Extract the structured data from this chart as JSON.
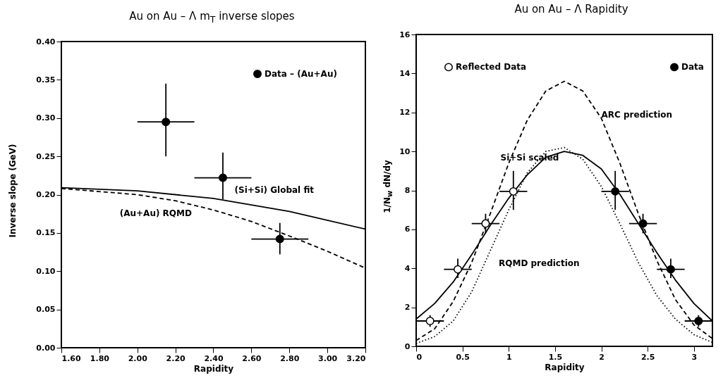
{
  "chart_data": [
    {
      "type": "scatter",
      "title": "Au on Au – Λ m$_{T}$ inverse slopes",
      "xlabel": "Rapidity",
      "ylabel": "Inverse slope (GeV)",
      "xlim": [
        1.6,
        3.2
      ],
      "ylim": [
        0,
        0.4
      ],
      "xticks": [
        {
          "value": 1.6,
          "label": "1.60"
        },
        {
          "value": 1.8,
          "label": "1.80"
        },
        {
          "value": 2.0,
          "label": "2.00"
        },
        {
          "value": 2.2,
          "label": "2.20"
        },
        {
          "value": 2.4,
          "label": "2.40"
        },
        {
          "value": 2.6,
          "label": "2.60"
        },
        {
          "value": 2.8,
          "label": "2.80"
        },
        {
          "value": 3.0,
          "label": "3.00"
        },
        {
          "value": 3.2,
          "label": "3.20"
        }
      ],
      "yticks": [
        {
          "value": 0,
          "label": "0.00"
        },
        0.05,
        {
          "value": 0.1,
          "label": "0.10"
        },
        0.15,
        {
          "value": 0.2,
          "label": "0.20"
        },
        0.25,
        {
          "value": 0.3,
          "label": "0.30"
        },
        0.35,
        {
          "value": 0.4,
          "label": "0.40"
        }
      ],
      "grid": false,
      "legend": "top right",
      "series": [
        {
          "name": "Data – (Au+Au)",
          "type": "scatter",
          "marker": "circle",
          "color": "#000000",
          "x": [
            2.15,
            2.45,
            2.75
          ],
          "values": [
            0.295,
            0.222,
            0.142
          ],
          "errors": [
            [
              0.25,
              0.345
            ],
            [
              0.194,
              0.255
            ],
            [
              0.122,
              0.163
            ]
          ],
          "xerrors": [
            0.15,
            0.15,
            0.15
          ]
        },
        {
          "name": "(Si+Si) Global fit",
          "type": "line",
          "line_style": "solid",
          "color": "#000000",
          "x": [
            1.6,
            2.0,
            2.4,
            2.8,
            3.2
          ],
          "values": [
            0.209,
            0.205,
            0.195,
            0.178,
            0.155
          ]
        },
        {
          "name": "(Au+Au) RQMD",
          "type": "line",
          "line_style": "dashed",
          "color": "#000000",
          "x": [
            1.6,
            2.0,
            2.2,
            2.4,
            2.6,
            2.8,
            3.0,
            3.2
          ],
          "values": [
            0.208,
            0.2,
            0.192,
            0.18,
            0.165,
            0.146,
            0.126,
            0.104
          ]
        }
      ]
    },
    {
      "type": "scatter",
      "title": "Au on Au – Λ Rapidity",
      "xlabel": "Rapidity",
      "ylabel": "1/N$_{w}$ dN/dy",
      "xlim": [
        0,
        3.2
      ],
      "ylim": [
        0,
        16
      ],
      "xticks": [
        0,
        0.5,
        1,
        1.5,
        2,
        2.5,
        3
      ],
      "yticks": [
        0,
        2,
        4,
        6,
        8,
        10,
        12,
        14,
        16
      ],
      "grid": false,
      "legend": "top",
      "series": [
        {
          "name": "Reflected Data",
          "type": "scatter",
          "marker": "circle",
          "color": "#ffffff",
          "x": [
            0.15,
            0.45,
            0.75,
            1.05
          ],
          "values": [
            1.3,
            3.95,
            6.3,
            7.95
          ],
          "errors": [
            [
              1.0,
              1.6
            ],
            [
              3.5,
              4.5
            ],
            [
              5.8,
              6.8
            ],
            [
              7.0,
              9.0
            ]
          ],
          "xerrors": [
            0.15,
            0.15,
            0.15,
            0.15
          ]
        },
        {
          "name": "Data",
          "type": "scatter",
          "marker": "circle",
          "color": "#000000",
          "x": [
            2.15,
            2.45,
            2.75,
            3.05
          ],
          "values": [
            7.95,
            6.3,
            3.95,
            1.3
          ],
          "errors": [
            [
              7.0,
              9.0
            ],
            [
              5.8,
              6.8
            ],
            [
              3.5,
              4.5
            ],
            [
              1.0,
              1.6
            ]
          ],
          "xerrors": [
            0.15,
            0.15,
            0.15,
            0.15
          ]
        },
        {
          "name": "Si+Si scaled",
          "type": "line",
          "line_style": "solid",
          "color": "#000000",
          "x": [
            0,
            0.2,
            0.4,
            0.6,
            0.8,
            1.0,
            1.2,
            1.4,
            1.6,
            1.8,
            2.0,
            2.2,
            2.4,
            2.6,
            2.8,
            3.0,
            3.2
          ],
          "values": [
            1.4,
            2.2,
            3.3,
            4.7,
            6.2,
            7.6,
            8.8,
            9.7,
            10.0,
            9.8,
            9.1,
            7.8,
            6.3,
            4.8,
            3.4,
            2.2,
            1.3
          ]
        },
        {
          "name": "ARC prediction",
          "type": "line",
          "line_style": "dashed",
          "color": "#000000",
          "x": [
            0,
            0.2,
            0.4,
            0.6,
            0.8,
            1.0,
            1.2,
            1.4,
            1.6,
            1.8,
            2.0,
            2.2,
            2.4,
            2.6,
            2.8,
            3.0,
            3.2
          ],
          "values": [
            0.3,
            0.9,
            2.3,
            4.3,
            6.8,
            9.4,
            11.6,
            13.1,
            13.6,
            13.1,
            11.7,
            9.4,
            6.8,
            4.4,
            2.4,
            1.1,
            0.4
          ]
        },
        {
          "name": "RQMD prediction",
          "type": "line",
          "line_style": "dotted",
          "color": "#000000",
          "x": [
            0,
            0.2,
            0.4,
            0.6,
            0.8,
            1.0,
            1.2,
            1.4,
            1.6,
            1.8,
            2.0,
            2.2,
            2.4,
            2.6,
            2.8,
            3.0,
            3.2
          ],
          "values": [
            0.15,
            0.5,
            1.3,
            2.8,
            4.9,
            7.0,
            8.9,
            10.0,
            10.2,
            9.6,
            8.2,
            6.3,
            4.3,
            2.6,
            1.4,
            0.6,
            0.2
          ]
        }
      ]
    }
  ]
}
